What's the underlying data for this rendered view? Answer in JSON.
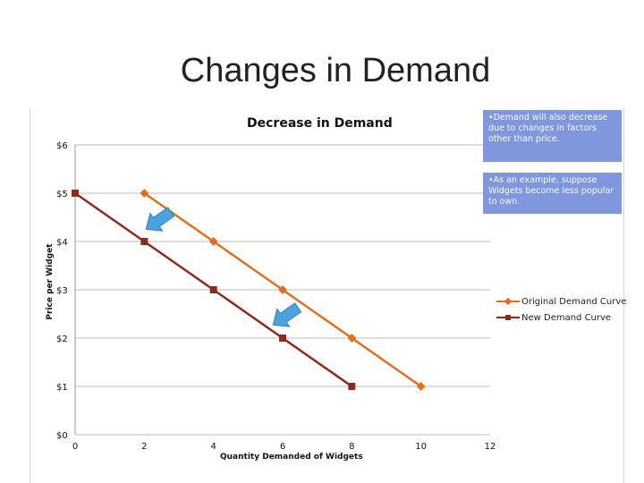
{
  "slide_title": "Changes in Demand",
  "notes": [
    "•Demand will also decrease due to changes in factors other than price.",
    "•As an example, suppose Widgets become less popular to own."
  ],
  "colors": {
    "original": "#e06f1f",
    "new": "#8b2a1e",
    "arrow": "#4aa3df",
    "note_bg": "#7f97dd"
  },
  "chart_data": {
    "type": "line",
    "title": "Decrease in Demand",
    "xlabel": "Quantity Demanded of Widgets",
    "ylabel": "Price per Widget",
    "xlim": [
      0,
      12
    ],
    "ylim": [
      0,
      6
    ],
    "xticks": [
      0,
      2,
      4,
      6,
      8,
      10,
      12
    ],
    "yticks": [
      "$0",
      "$1",
      "$2",
      "$3",
      "$4",
      "$5",
      "$6"
    ],
    "grid": "horizontal",
    "legend_position": "right",
    "series": [
      {
        "name": "Original Demand Curve",
        "marker": "diamond",
        "x": [
          2,
          4,
          6,
          8,
          10
        ],
        "y": [
          5,
          4,
          3,
          2,
          1
        ]
      },
      {
        "name": "New Demand Curve",
        "marker": "square",
        "x": [
          0,
          2,
          4,
          6,
          8
        ],
        "y": [
          5,
          4,
          3,
          2,
          1
        ]
      }
    ],
    "arrows": [
      "shift-left at $4",
      "shift-left at $2"
    ]
  }
}
